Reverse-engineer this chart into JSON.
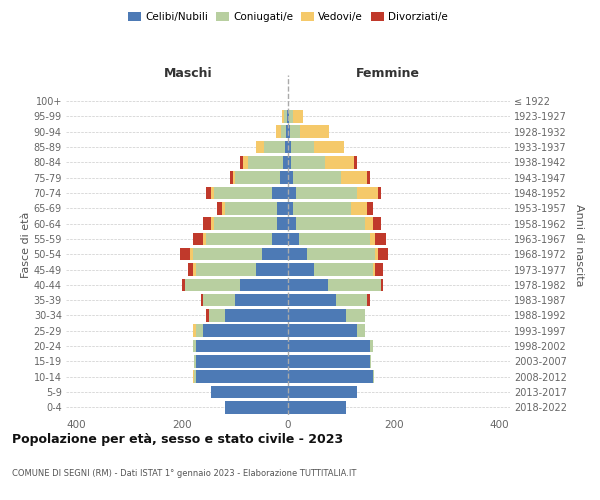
{
  "age_groups": [
    "0-4",
    "5-9",
    "10-14",
    "15-19",
    "20-24",
    "25-29",
    "30-34",
    "35-39",
    "40-44",
    "45-49",
    "50-54",
    "55-59",
    "60-64",
    "65-69",
    "70-74",
    "75-79",
    "80-84",
    "85-89",
    "90-94",
    "95-99",
    "100+"
  ],
  "birth_years": [
    "2018-2022",
    "2013-2017",
    "2008-2012",
    "2003-2007",
    "1998-2002",
    "1993-1997",
    "1988-1992",
    "1983-1987",
    "1978-1982",
    "1973-1977",
    "1968-1972",
    "1963-1967",
    "1958-1962",
    "1953-1957",
    "1948-1952",
    "1943-1947",
    "1938-1942",
    "1933-1937",
    "1928-1932",
    "1923-1927",
    "≤ 1922"
  ],
  "maschi": {
    "celibi": [
      120,
      145,
      175,
      175,
      175,
      160,
      120,
      100,
      90,
      60,
      50,
      30,
      20,
      20,
      30,
      15,
      10,
      5,
      3,
      2,
      0
    ],
    "coniugati": [
      0,
      0,
      2,
      2,
      5,
      15,
      30,
      60,
      105,
      115,
      130,
      125,
      120,
      100,
      110,
      85,
      65,
      40,
      10,
      5,
      0
    ],
    "vedovi": [
      0,
      0,
      2,
      0,
      0,
      5,
      0,
      0,
      0,
      5,
      5,
      5,
      5,
      5,
      5,
      5,
      10,
      15,
      10,
      5,
      0
    ],
    "divorziati": [
      0,
      0,
      0,
      0,
      0,
      0,
      5,
      5,
      5,
      10,
      20,
      20,
      15,
      10,
      10,
      5,
      5,
      0,
      0,
      0,
      0
    ]
  },
  "femmine": {
    "nubili": [
      110,
      130,
      160,
      155,
      155,
      130,
      110,
      90,
      75,
      50,
      35,
      20,
      15,
      10,
      15,
      10,
      5,
      5,
      3,
      2,
      0
    ],
    "coniugate": [
      0,
      0,
      2,
      2,
      5,
      15,
      35,
      60,
      100,
      110,
      130,
      135,
      130,
      110,
      115,
      90,
      65,
      45,
      20,
      8,
      0
    ],
    "vedove": [
      0,
      0,
      0,
      0,
      0,
      0,
      0,
      0,
      0,
      5,
      5,
      10,
      15,
      30,
      40,
      50,
      55,
      55,
      55,
      18,
      0
    ],
    "divorziate": [
      0,
      0,
      0,
      0,
      0,
      0,
      0,
      5,
      5,
      15,
      20,
      20,
      15,
      10,
      5,
      5,
      5,
      0,
      0,
      0,
      0
    ]
  },
  "colors": {
    "celibi": "#4d7ab5",
    "coniugati": "#b8cfa0",
    "vedovi": "#f5c96a",
    "divorziati": "#c0392b"
  },
  "legend_labels": [
    "Celibi/Nubili",
    "Coniugati/e",
    "Vedovi/e",
    "Divorziati/e"
  ],
  "title": "Popolazione per età, sesso e stato civile - 2023",
  "subtitle": "COMUNE DI SEGNI (RM) - Dati ISTAT 1° gennaio 2023 - Elaborazione TUTTITALIA.IT",
  "xlabel_left": "Maschi",
  "xlabel_right": "Femmine",
  "ylabel_left": "Fasce di età",
  "ylabel_right": "Anni di nascita",
  "xlim": 420,
  "background_color": "#ffffff",
  "grid_color": "#cccccc"
}
